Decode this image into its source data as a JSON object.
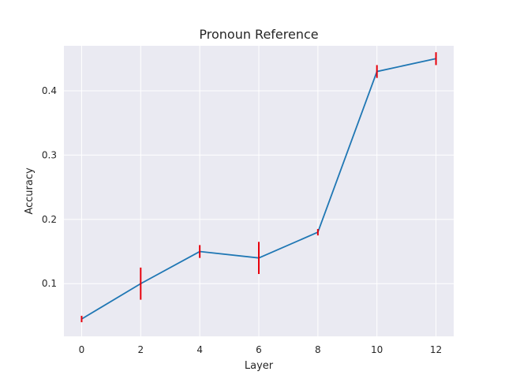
{
  "chart_data": {
    "type": "line",
    "title": "Pronoun Reference",
    "xlabel": "Layer",
    "ylabel": "Accuracy",
    "xlim": [
      -0.6,
      12.6
    ],
    "ylim": [
      0.018,
      0.47
    ],
    "xticks": [
      0,
      2,
      4,
      6,
      8,
      10,
      12
    ],
    "yticks": [
      0.1,
      0.2,
      0.3,
      0.4
    ],
    "ytick_labels": [
      "0.1",
      "0.2",
      "0.3",
      "0.4"
    ],
    "grid": true,
    "series": [
      {
        "x": [
          0,
          2,
          4,
          6,
          8,
          10,
          12
        ],
        "y": [
          0.045,
          0.1,
          0.15,
          0.14,
          0.18,
          0.43,
          0.45
        ],
        "error": [
          0.005,
          0.025,
          0.01,
          0.025,
          0.005,
          0.01,
          0.01
        ]
      }
    ],
    "colors": {
      "background": "#eaeaf2",
      "grid": "#ffffff",
      "line": "#1f77b4",
      "error_bar": "#e8000b"
    }
  }
}
